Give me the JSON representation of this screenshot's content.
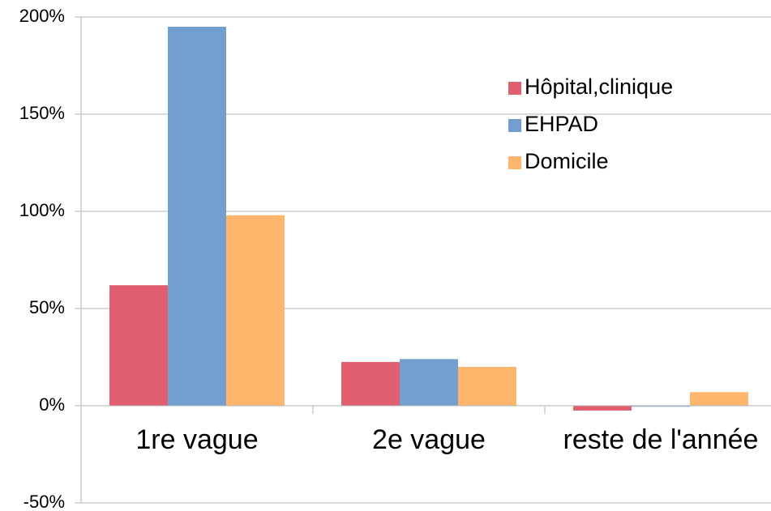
{
  "chart_data": {
    "type": "bar",
    "categories": [
      "1re vague",
      "2e vague",
      "reste de l'année"
    ],
    "series": [
      {
        "name": "Hôpital,clinique",
        "color": "#e05e6e",
        "values": [
          62,
          22.5,
          -2.5
        ]
      },
      {
        "name": "EHPAD",
        "color": "#729fcf",
        "values": [
          195,
          24,
          -0.5
        ]
      },
      {
        "name": "Domicile",
        "color": "#ffb66c",
        "values": [
          98,
          20,
          7
        ]
      }
    ],
    "ylim": [
      -50,
      200
    ],
    "yticks": [
      {
        "value": -50,
        "label": "-50%"
      },
      {
        "value": 0,
        "label": "0%"
      },
      {
        "value": 50,
        "label": "50%"
      },
      {
        "value": 100,
        "label": "100%"
      },
      {
        "value": 150,
        "label": "150%"
      },
      {
        "value": 200,
        "label": "200%"
      }
    ],
    "grid": true,
    "legend": "upper right"
  }
}
